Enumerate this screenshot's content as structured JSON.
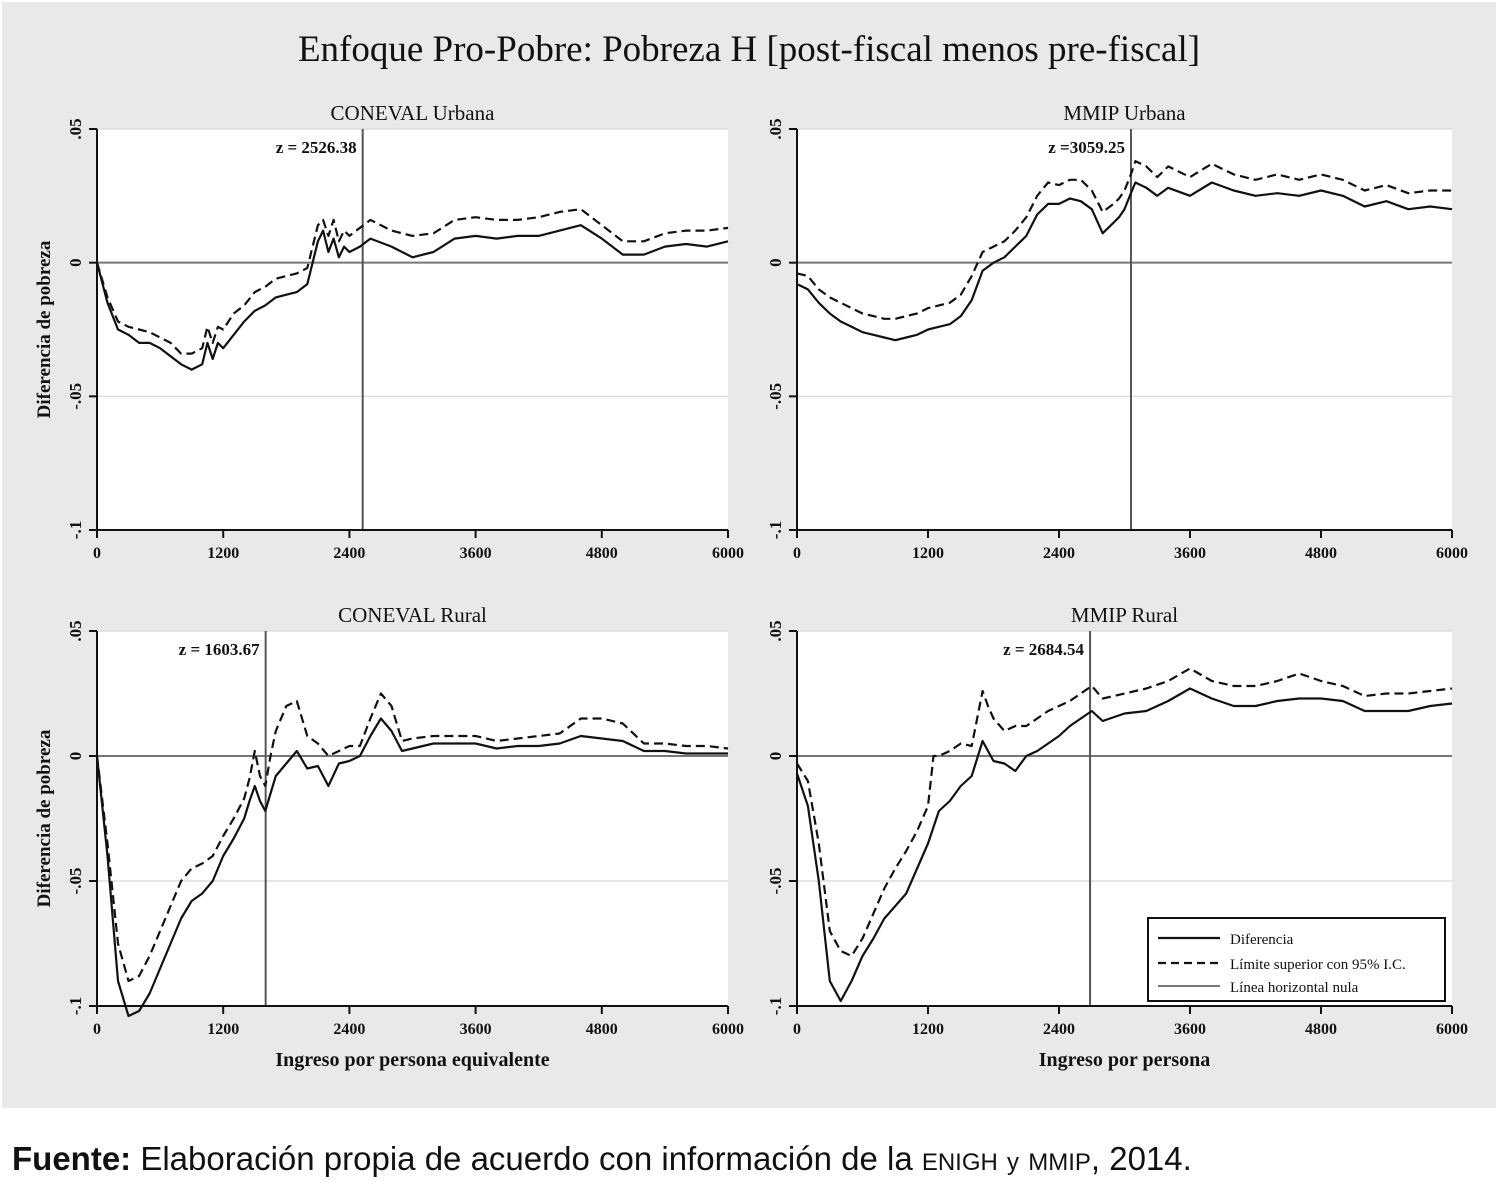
{
  "figure": {
    "title": "Enfoque Pro-Pobre: Pobreza H [post-fiscal menos pre-fiscal]"
  },
  "caption": {
    "label": "Fuente:",
    "text_before": "Elaboración propia de acuerdo con información de la",
    "enigh": "ENIGH",
    "conj": "y",
    "mmip": "MMIP",
    "text_after": ", 2014."
  },
  "legend": {
    "items": [
      "Diferencia",
      "Límite superior con 95% I.C.",
      "Línea horizontal nula"
    ]
  },
  "chart_data": [
    {
      "type": "line",
      "title": "CONEVAL Urbana",
      "ylabel": "Diferencia de pobreza",
      "xlabel": "",
      "xlim": [
        0,
        6000
      ],
      "ylim": [
        -0.1,
        0.05
      ],
      "xticks": [
        "0",
        "1200",
        "2400",
        "3600",
        "4800",
        "6000"
      ],
      "yticks": [
        "-.1",
        "-.05",
        "0",
        ".05"
      ],
      "threshold": 2526.38,
      "threshold_label": "z = 2526.38",
      "series": [
        {
          "name": "Diferencia",
          "style": "solid",
          "x": [
            0,
            100,
            200,
            300,
            400,
            500,
            600,
            700,
            800,
            900,
            1000,
            1050,
            1100,
            1150,
            1200,
            1300,
            1400,
            1500,
            1600,
            1700,
            1800,
            1900,
            2000,
            2100,
            2150,
            2200,
            2250,
            2300,
            2350,
            2400,
            2500,
            2600,
            2800,
            3000,
            3200,
            3400,
            3600,
            3800,
            4000,
            4200,
            4400,
            4600,
            4800,
            5000,
            5200,
            5400,
            5600,
            5800,
            6000
          ],
          "y": [
            0,
            -0.015,
            -0.025,
            -0.027,
            -0.03,
            -0.03,
            -0.032,
            -0.035,
            -0.038,
            -0.04,
            -0.038,
            -0.03,
            -0.036,
            -0.03,
            -0.032,
            -0.027,
            -0.022,
            -0.018,
            -0.016,
            -0.013,
            -0.012,
            -0.011,
            -0.008,
            0.008,
            0.012,
            0.004,
            0.009,
            0.002,
            0.006,
            0.004,
            0.006,
            0.009,
            0.006,
            0.002,
            0.004,
            0.009,
            0.01,
            0.009,
            0.01,
            0.01,
            0.012,
            0.014,
            0.009,
            0.003,
            0.003,
            0.006,
            0.007,
            0.006,
            0.008
          ]
        },
        {
          "name": "Límite superior con 95% I.C.",
          "style": "dashed",
          "x": [
            0,
            100,
            200,
            300,
            400,
            500,
            600,
            700,
            800,
            900,
            1000,
            1050,
            1100,
            1150,
            1200,
            1300,
            1400,
            1500,
            1600,
            1700,
            1800,
            1900,
            2000,
            2100,
            2150,
            2200,
            2250,
            2300,
            2350,
            2400,
            2500,
            2600,
            2800,
            3000,
            3200,
            3400,
            3600,
            3800,
            4000,
            4200,
            4400,
            4600,
            4800,
            5000,
            5200,
            5400,
            5600,
            5800,
            6000
          ],
          "y": [
            0,
            -0.013,
            -0.022,
            -0.024,
            -0.025,
            -0.026,
            -0.028,
            -0.03,
            -0.034,
            -0.034,
            -0.032,
            -0.024,
            -0.03,
            -0.024,
            -0.025,
            -0.019,
            -0.016,
            -0.011,
            -0.009,
            -0.006,
            -0.005,
            -0.004,
            -0.002,
            0.014,
            0.016,
            0.01,
            0.016,
            0.008,
            0.012,
            0.01,
            0.013,
            0.016,
            0.012,
            0.01,
            0.011,
            0.016,
            0.017,
            0.016,
            0.016,
            0.017,
            0.019,
            0.02,
            0.014,
            0.008,
            0.008,
            0.011,
            0.012,
            0.012,
            0.013
          ]
        }
      ]
    },
    {
      "type": "line",
      "title": "MMIP Urbana",
      "ylabel": "",
      "xlabel": "",
      "xlim": [
        0,
        6000
      ],
      "ylim": [
        -0.1,
        0.05
      ],
      "xticks": [
        "0",
        "1200",
        "2400",
        "3600",
        "4800",
        "6000"
      ],
      "yticks": [
        "-.1",
        "-.05",
        "0",
        ".05"
      ],
      "threshold": 3059.25,
      "threshold_label": "z =3059.25",
      "series": [
        {
          "name": "Diferencia",
          "style": "solid",
          "x": [
            0,
            100,
            200,
            300,
            400,
            500,
            600,
            700,
            800,
            900,
            1000,
            1100,
            1200,
            1300,
            1400,
            1500,
            1600,
            1700,
            1800,
            1900,
            2000,
            2100,
            2200,
            2300,
            2400,
            2500,
            2600,
            2700,
            2800,
            2900,
            2950,
            3000,
            3059,
            3100,
            3200,
            3300,
            3400,
            3600,
            3800,
            4000,
            4200,
            4400,
            4600,
            4800,
            5000,
            5200,
            5400,
            5600,
            5800,
            6000
          ],
          "y": [
            -0.008,
            -0.01,
            -0.015,
            -0.019,
            -0.022,
            -0.024,
            -0.026,
            -0.027,
            -0.028,
            -0.029,
            -0.028,
            -0.027,
            -0.025,
            -0.024,
            -0.023,
            -0.02,
            -0.014,
            -0.003,
            0.0,
            0.002,
            0.006,
            0.01,
            0.018,
            0.022,
            0.022,
            0.024,
            0.023,
            0.02,
            0.011,
            0.015,
            0.017,
            0.02,
            0.026,
            0.03,
            0.028,
            0.025,
            0.028,
            0.025,
            0.03,
            0.027,
            0.025,
            0.026,
            0.025,
            0.027,
            0.025,
            0.021,
            0.023,
            0.02,
            0.021,
            0.02
          ]
        },
        {
          "name": "Límite superior con 95% I.C.",
          "style": "dashed",
          "x": [
            0,
            100,
            200,
            300,
            400,
            500,
            600,
            700,
            800,
            900,
            1000,
            1100,
            1200,
            1300,
            1400,
            1500,
            1600,
            1700,
            1800,
            1900,
            2000,
            2100,
            2200,
            2300,
            2400,
            2500,
            2600,
            2700,
            2800,
            2900,
            2950,
            3000,
            3059,
            3100,
            3200,
            3300,
            3400,
            3600,
            3800,
            4000,
            4200,
            4400,
            4600,
            4800,
            5000,
            5200,
            5400,
            5600,
            5800,
            6000
          ],
          "y": [
            -0.004,
            -0.005,
            -0.01,
            -0.013,
            -0.015,
            -0.017,
            -0.019,
            -0.02,
            -0.021,
            -0.021,
            -0.02,
            -0.019,
            -0.017,
            -0.016,
            -0.015,
            -0.012,
            -0.005,
            0.004,
            0.006,
            0.008,
            0.012,
            0.017,
            0.025,
            0.03,
            0.029,
            0.031,
            0.031,
            0.027,
            0.019,
            0.022,
            0.024,
            0.027,
            0.033,
            0.038,
            0.036,
            0.032,
            0.036,
            0.032,
            0.037,
            0.033,
            0.031,
            0.033,
            0.031,
            0.033,
            0.031,
            0.027,
            0.029,
            0.026,
            0.027,
            0.027
          ]
        }
      ]
    },
    {
      "type": "line",
      "title": "CONEVAL Rural",
      "ylabel": "Diferencia de pobreza",
      "xlabel": "Ingreso por persona equivalente",
      "xlim": [
        0,
        6000
      ],
      "ylim": [
        -0.1,
        0.05
      ],
      "xticks": [
        "0",
        "1200",
        "2400",
        "3600",
        "4800",
        "6000"
      ],
      "yticks": [
        "-.1",
        "-.05",
        "0",
        ".05"
      ],
      "threshold": 1603.67,
      "threshold_label": "z = 1603.67",
      "series": [
        {
          "name": "Diferencia",
          "style": "solid",
          "x": [
            0,
            100,
            200,
            300,
            400,
            500,
            600,
            700,
            800,
            900,
            1000,
            1100,
            1200,
            1300,
            1400,
            1450,
            1500,
            1550,
            1600,
            1650,
            1700,
            1800,
            1900,
            2000,
            2100,
            2200,
            2300,
            2400,
            2500,
            2600,
            2700,
            2800,
            2900,
            3000,
            3200,
            3400,
            3600,
            3800,
            4000,
            4200,
            4400,
            4600,
            4800,
            5000,
            5200,
            5400,
            5600,
            5800,
            6000
          ],
          "y": [
            0,
            -0.04,
            -0.09,
            -0.104,
            -0.102,
            -0.095,
            -0.085,
            -0.075,
            -0.065,
            -0.058,
            -0.055,
            -0.05,
            -0.04,
            -0.033,
            -0.025,
            -0.018,
            -0.012,
            -0.018,
            -0.022,
            -0.015,
            -0.008,
            -0.003,
            0.002,
            -0.005,
            -0.004,
            -0.012,
            -0.003,
            -0.002,
            0.0,
            0.008,
            0.015,
            0.01,
            0.002,
            0.003,
            0.005,
            0.005,
            0.005,
            0.003,
            0.004,
            0.004,
            0.005,
            0.008,
            0.007,
            0.006,
            0.002,
            0.002,
            0.001,
            0.001,
            0.001
          ]
        },
        {
          "name": "Límite superior con 95% I.C.",
          "style": "dashed",
          "x": [
            0,
            100,
            200,
            300,
            400,
            500,
            600,
            700,
            800,
            900,
            1000,
            1100,
            1200,
            1300,
            1400,
            1450,
            1500,
            1550,
            1600,
            1650,
            1700,
            1800,
            1900,
            2000,
            2100,
            2200,
            2300,
            2400,
            2500,
            2600,
            2700,
            2800,
            2900,
            3000,
            3200,
            3400,
            3600,
            3800,
            4000,
            4200,
            4400,
            4600,
            4800,
            5000,
            5200,
            5400,
            5600,
            5800,
            6000
          ],
          "y": [
            0,
            -0.035,
            -0.075,
            -0.09,
            -0.088,
            -0.08,
            -0.07,
            -0.06,
            -0.05,
            -0.045,
            -0.043,
            -0.04,
            -0.032,
            -0.025,
            -0.017,
            -0.009,
            0.002,
            -0.008,
            -0.012,
            0.0,
            0.01,
            0.02,
            0.022,
            0.008,
            0.005,
            0.0,
            0.002,
            0.004,
            0.004,
            0.015,
            0.025,
            0.02,
            0.006,
            0.007,
            0.008,
            0.008,
            0.008,
            0.006,
            0.007,
            0.008,
            0.009,
            0.015,
            0.015,
            0.013,
            0.005,
            0.005,
            0.004,
            0.004,
            0.003
          ]
        }
      ]
    },
    {
      "type": "line",
      "title": "MMIP Rural",
      "ylabel": "",
      "xlabel": "Ingreso por persona",
      "xlim": [
        0,
        6000
      ],
      "ylim": [
        -0.1,
        0.05
      ],
      "xticks": [
        "0",
        "1200",
        "2400",
        "3600",
        "4800",
        "6000"
      ],
      "yticks": [
        "-.1",
        "-.05",
        "0",
        ".05"
      ],
      "threshold": 2684.54,
      "threshold_label": "z = 2684.54",
      "series": [
        {
          "name": "Diferencia",
          "style": "solid",
          "x": [
            0,
            100,
            200,
            300,
            400,
            500,
            600,
            700,
            800,
            900,
            1000,
            1100,
            1200,
            1300,
            1400,
            1500,
            1600,
            1700,
            1750,
            1800,
            1900,
            2000,
            2100,
            2200,
            2300,
            2400,
            2500,
            2600,
            2700,
            2800,
            3000,
            3200,
            3400,
            3600,
            3800,
            4000,
            4200,
            4400,
            4600,
            4800,
            5000,
            5200,
            5400,
            5600,
            5800,
            6000
          ],
          "y": [
            -0.007,
            -0.02,
            -0.05,
            -0.09,
            -0.098,
            -0.09,
            -0.08,
            -0.073,
            -0.065,
            -0.06,
            -0.055,
            -0.045,
            -0.035,
            -0.022,
            -0.018,
            -0.012,
            -0.008,
            0.006,
            0.002,
            -0.002,
            -0.003,
            -0.006,
            0.0,
            0.002,
            0.005,
            0.008,
            0.012,
            0.015,
            0.018,
            0.014,
            0.017,
            0.018,
            0.022,
            0.027,
            0.023,
            0.02,
            0.02,
            0.022,
            0.023,
            0.023,
            0.022,
            0.018,
            0.018,
            0.018,
            0.02,
            0.021
          ]
        },
        {
          "name": "Límite superior con 95% I.C.",
          "style": "dashed",
          "x": [
            0,
            100,
            200,
            300,
            400,
            500,
            600,
            700,
            800,
            900,
            1000,
            1100,
            1200,
            1250,
            1300,
            1400,
            1500,
            1600,
            1700,
            1750,
            1800,
            1900,
            2000,
            2100,
            2200,
            2300,
            2400,
            2500,
            2600,
            2700,
            2800,
            3000,
            3200,
            3400,
            3600,
            3800,
            4000,
            4200,
            4400,
            4600,
            4800,
            5000,
            5200,
            5400,
            5600,
            5800,
            6000
          ],
          "y": [
            -0.003,
            -0.01,
            -0.035,
            -0.07,
            -0.078,
            -0.08,
            -0.073,
            -0.063,
            -0.053,
            -0.045,
            -0.038,
            -0.03,
            -0.02,
            0.0,
            0.0,
            0.002,
            0.005,
            0.004,
            0.026,
            0.02,
            0.015,
            0.01,
            0.012,
            0.012,
            0.015,
            0.018,
            0.02,
            0.022,
            0.025,
            0.028,
            0.023,
            0.025,
            0.027,
            0.03,
            0.035,
            0.03,
            0.028,
            0.028,
            0.03,
            0.033,
            0.03,
            0.028,
            0.024,
            0.025,
            0.025,
            0.026,
            0.027
          ]
        }
      ]
    }
  ]
}
